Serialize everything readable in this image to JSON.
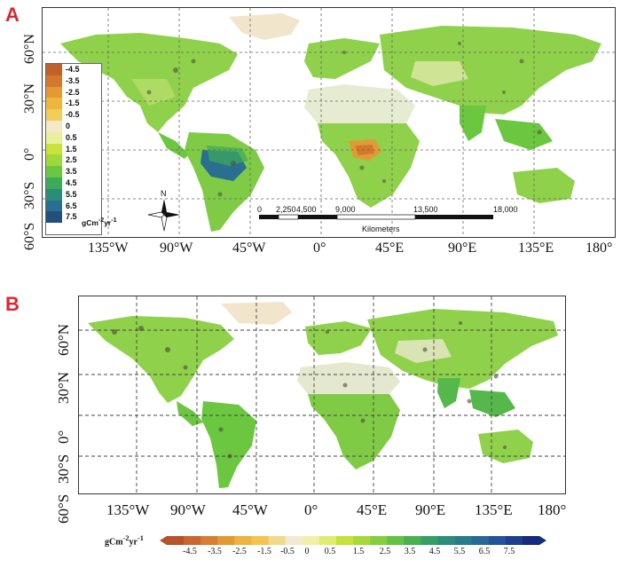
{
  "panel_a": {
    "letter": "A",
    "lat_labels": [
      "60°N",
      "30°N",
      "0°",
      "30°S",
      "60°S"
    ],
    "lon_labels": [
      "135°W",
      "90°W",
      "45°W",
      "0°",
      "45°E",
      "90°E",
      "135°E",
      "180°"
    ],
    "legend": {
      "unit": "gCm",
      "unit_sup1": "-2",
      "unit_mid": "yr",
      "unit_sup2": "-1",
      "ticks": [
        "-4.5",
        "-3.5",
        "-2.5",
        "-1.5",
        "-0.5",
        "0",
        "0.5",
        "1.5",
        "2.5",
        "3.5",
        "4.5",
        "5.5",
        "6.5",
        "7.5"
      ],
      "colors": [
        "#c0602a",
        "#d4782e",
        "#e39a35",
        "#eeb63c",
        "#f2cd5a",
        "#f4e8c8",
        "#e9ef9a",
        "#c9e33a",
        "#9fd83a",
        "#6bc640",
        "#3daa5a",
        "#2b8c7a",
        "#2a6f92",
        "#23507a"
      ]
    },
    "north_label": "N",
    "scale_bar": {
      "ticks": [
        "0",
        "2,250",
        "4,500",
        "9,000",
        "13,500",
        "18,000"
      ],
      "unit": "Kilometers"
    }
  },
  "panel_b": {
    "letter": "B",
    "lat_labels": [
      "60°N",
      "30°N",
      "0°",
      "30°S",
      "60°S"
    ],
    "lon_labels": [
      "135°W",
      "90°W",
      "45°W",
      "0°",
      "45°E",
      "90°E",
      "135°E",
      "180°"
    ],
    "colorbar": {
      "unit": "gCm",
      "unit_sup1": "-2",
      "unit_mid": "yr",
      "unit_sup2": "-1",
      "ticks": [
        "-4.5",
        "-3.5",
        "-2.5",
        "-1.5",
        "-0.5",
        "0",
        "0.5",
        "1.5",
        "2.5",
        "3.5",
        "4.5",
        "5.5",
        "6.5",
        "7.5"
      ],
      "colors": [
        "#b5542a",
        "#c8672e",
        "#d87f33",
        "#e39a35",
        "#eeb23e",
        "#f2c550",
        "#f3d98a",
        "#f3ead2",
        "#f2f0a8",
        "#e0ec6e",
        "#c6e23a",
        "#a8d93a",
        "#86cf3c",
        "#65c243",
        "#47b14e",
        "#35a064",
        "#2c8e78",
        "#297c8a",
        "#276a96",
        "#23549a",
        "#1e3f8e",
        "#142c7a"
      ]
    }
  },
  "colors": {
    "panel_letter": "#d9282f",
    "land_green": "#8fd14a",
    "ice": "#f1e6cc"
  }
}
